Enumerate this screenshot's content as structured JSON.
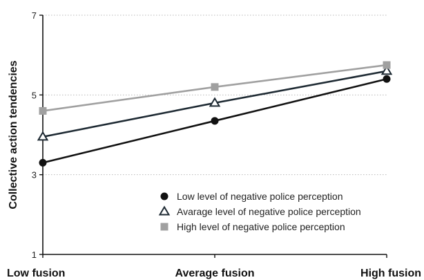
{
  "chart_data": {
    "type": "line",
    "categories": [
      "Low fusion",
      "Average fusion",
      "High fusion"
    ],
    "ylabel": "Collective action tendencies",
    "xlabel": "",
    "ylim": [
      1,
      7
    ],
    "yticks": [
      "1",
      "3",
      "5",
      "7"
    ],
    "grid": "horizontal dotted",
    "legend_position": "bottom-right",
    "series": [
      {
        "name": "Low level of negative police perception",
        "values": [
          3.3,
          4.35,
          5.4
        ],
        "color": "#111111",
        "marker": "circle"
      },
      {
        "name": "Avarage level of negative police perception",
        "values": [
          3.95,
          4.8,
          5.6
        ],
        "color": "#1e2a33",
        "marker": "triangle-open"
      },
      {
        "name": "High level of negative police perception",
        "values": [
          4.6,
          5.2,
          5.75
        ],
        "color": "#a0a0a0",
        "marker": "square"
      }
    ]
  }
}
